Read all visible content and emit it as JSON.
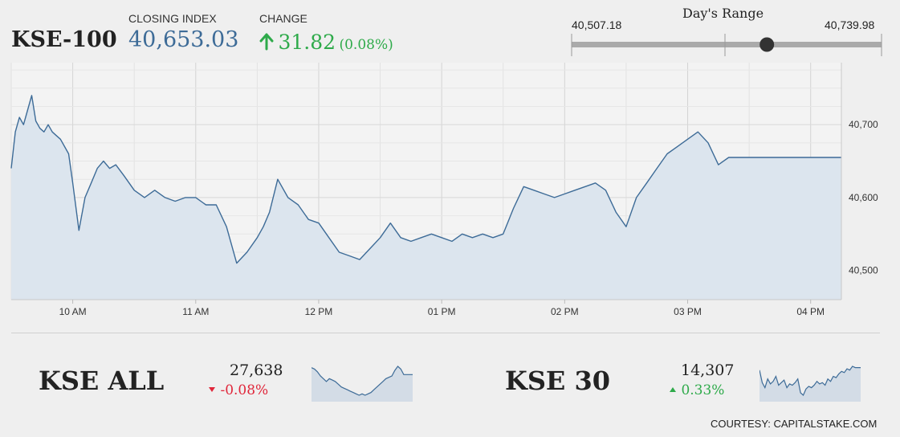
{
  "header": {
    "index_name": "KSE-100",
    "closing_label": "CLOSING INDEX",
    "closing_value": "40,653.03",
    "change_label": "CHANGE",
    "change_value": "31.82",
    "change_pct": "(0.08%)",
    "change_direction": "up",
    "up_color": "#2eaa4a",
    "down_color": "#e0263a",
    "accent_color": "#3d6b97"
  },
  "days_range": {
    "title": "Day's Range",
    "low": "40,507.18",
    "high": "40,739.98",
    "current_fraction": 0.63
  },
  "chart_data": {
    "type": "area",
    "title": "",
    "xlabel": "",
    "ylabel": "",
    "x_tick_labels": [
      "10 AM",
      "11 AM",
      "12 PM",
      "01 PM",
      "02 PM",
      "03 PM",
      "04 PM"
    ],
    "y_tick_labels": [
      "40,500",
      "40,600",
      "40,700"
    ],
    "y_ticks": [
      40500,
      40600,
      40700
    ],
    "ylim": [
      40460,
      40785
    ],
    "xlim": [
      "09:30",
      "16:15"
    ],
    "grid": true,
    "line_color": "#3d6b97",
    "fill_color": "#dce5ee",
    "series": [
      {
        "x": [
          "09:30",
          "09:32",
          "09:34",
          "09:36",
          "09:38",
          "09:40",
          "09:42",
          "09:44",
          "09:46",
          "09:48",
          "09:50",
          "09:52",
          "09:54",
          "09:56",
          "09:58",
          "10:00",
          "10:03",
          "10:06",
          "10:09",
          "10:12",
          "10:15",
          "10:18",
          "10:21",
          "10:25",
          "10:30",
          "10:35",
          "10:40",
          "10:45",
          "10:50",
          "10:55",
          "11:00",
          "11:05",
          "11:10",
          "11:15",
          "11:20",
          "11:25",
          "11:30",
          "11:33",
          "11:36",
          "11:40",
          "11:45",
          "11:50",
          "11:55",
          "12:00",
          "12:05",
          "12:10",
          "12:15",
          "12:20",
          "12:25",
          "12:30",
          "12:35",
          "12:40",
          "12:45",
          "12:50",
          "12:55",
          "13:00",
          "13:05",
          "13:10",
          "13:15",
          "13:20",
          "13:25",
          "13:30",
          "13:35",
          "13:40",
          "13:45",
          "13:50",
          "13:55",
          "14:00",
          "14:05",
          "14:10",
          "14:15",
          "14:20",
          "14:25",
          "14:30",
          "14:35",
          "14:40",
          "14:45",
          "14:50",
          "14:55",
          "15:00",
          "15:05",
          "15:10",
          "15:15",
          "15:20",
          "15:25",
          "15:30",
          "15:35",
          "15:40",
          "15:45",
          "15:50",
          "15:55",
          "16:00",
          "16:05",
          "16:10",
          "16:15"
        ],
        "y": [
          40640,
          40690,
          40710,
          40700,
          40720,
          40740,
          40705,
          40695,
          40690,
          40700,
          40690,
          40685,
          40680,
          40670,
          40660,
          40620,
          40555,
          40600,
          40620,
          40640,
          40650,
          40640,
          40645,
          40630,
          40610,
          40600,
          40610,
          40600,
          40595,
          40600,
          40600,
          40590,
          40590,
          40560,
          40510,
          40525,
          40545,
          40560,
          40580,
          40625,
          40600,
          40590,
          40570,
          40565,
          40545,
          40525,
          40520,
          40515,
          40530,
          40545,
          40565,
          40545,
          40540,
          40545,
          40550,
          40545,
          40540,
          40550,
          40545,
          40550,
          40545,
          40550,
          40585,
          40615,
          40610,
          40605,
          40600,
          40605,
          40610,
          40615,
          40620,
          40610,
          40580,
          40560,
          40600,
          40620,
          40640,
          40660,
          40670,
          40680,
          40690,
          40675,
          40645,
          40655,
          40655,
          40655,
          40655,
          40655,
          40655,
          40655,
          40655,
          40655,
          40655,
          40655,
          40655
        ]
      }
    ]
  },
  "sub_indices": [
    {
      "name": "KSE ALL",
      "value": "27,638",
      "change": "-0.08%",
      "direction": "down",
      "spark": [
        50,
        48,
        44,
        38,
        34,
        30,
        34,
        32,
        30,
        26,
        22,
        20,
        18,
        16,
        14,
        12,
        10,
        12,
        10,
        12,
        14,
        18,
        22,
        26,
        30,
        34,
        36,
        38,
        46,
        52,
        48,
        40,
        40,
        40,
        40
      ]
    },
    {
      "name": "KSE 30",
      "value": "14,307",
      "change": "0.33%",
      "direction": "up",
      "spark": [
        50,
        30,
        22,
        36,
        28,
        32,
        40,
        26,
        30,
        34,
        22,
        28,
        26,
        30,
        36,
        14,
        10,
        20,
        24,
        22,
        26,
        32,
        28,
        30,
        26,
        36,
        32,
        40,
        38,
        44,
        48,
        46,
        52,
        50,
        56,
        54,
        54,
        54
      ]
    }
  ],
  "footer": {
    "courtesy": "COURTESY: CAPITALSTAKE.COM"
  }
}
